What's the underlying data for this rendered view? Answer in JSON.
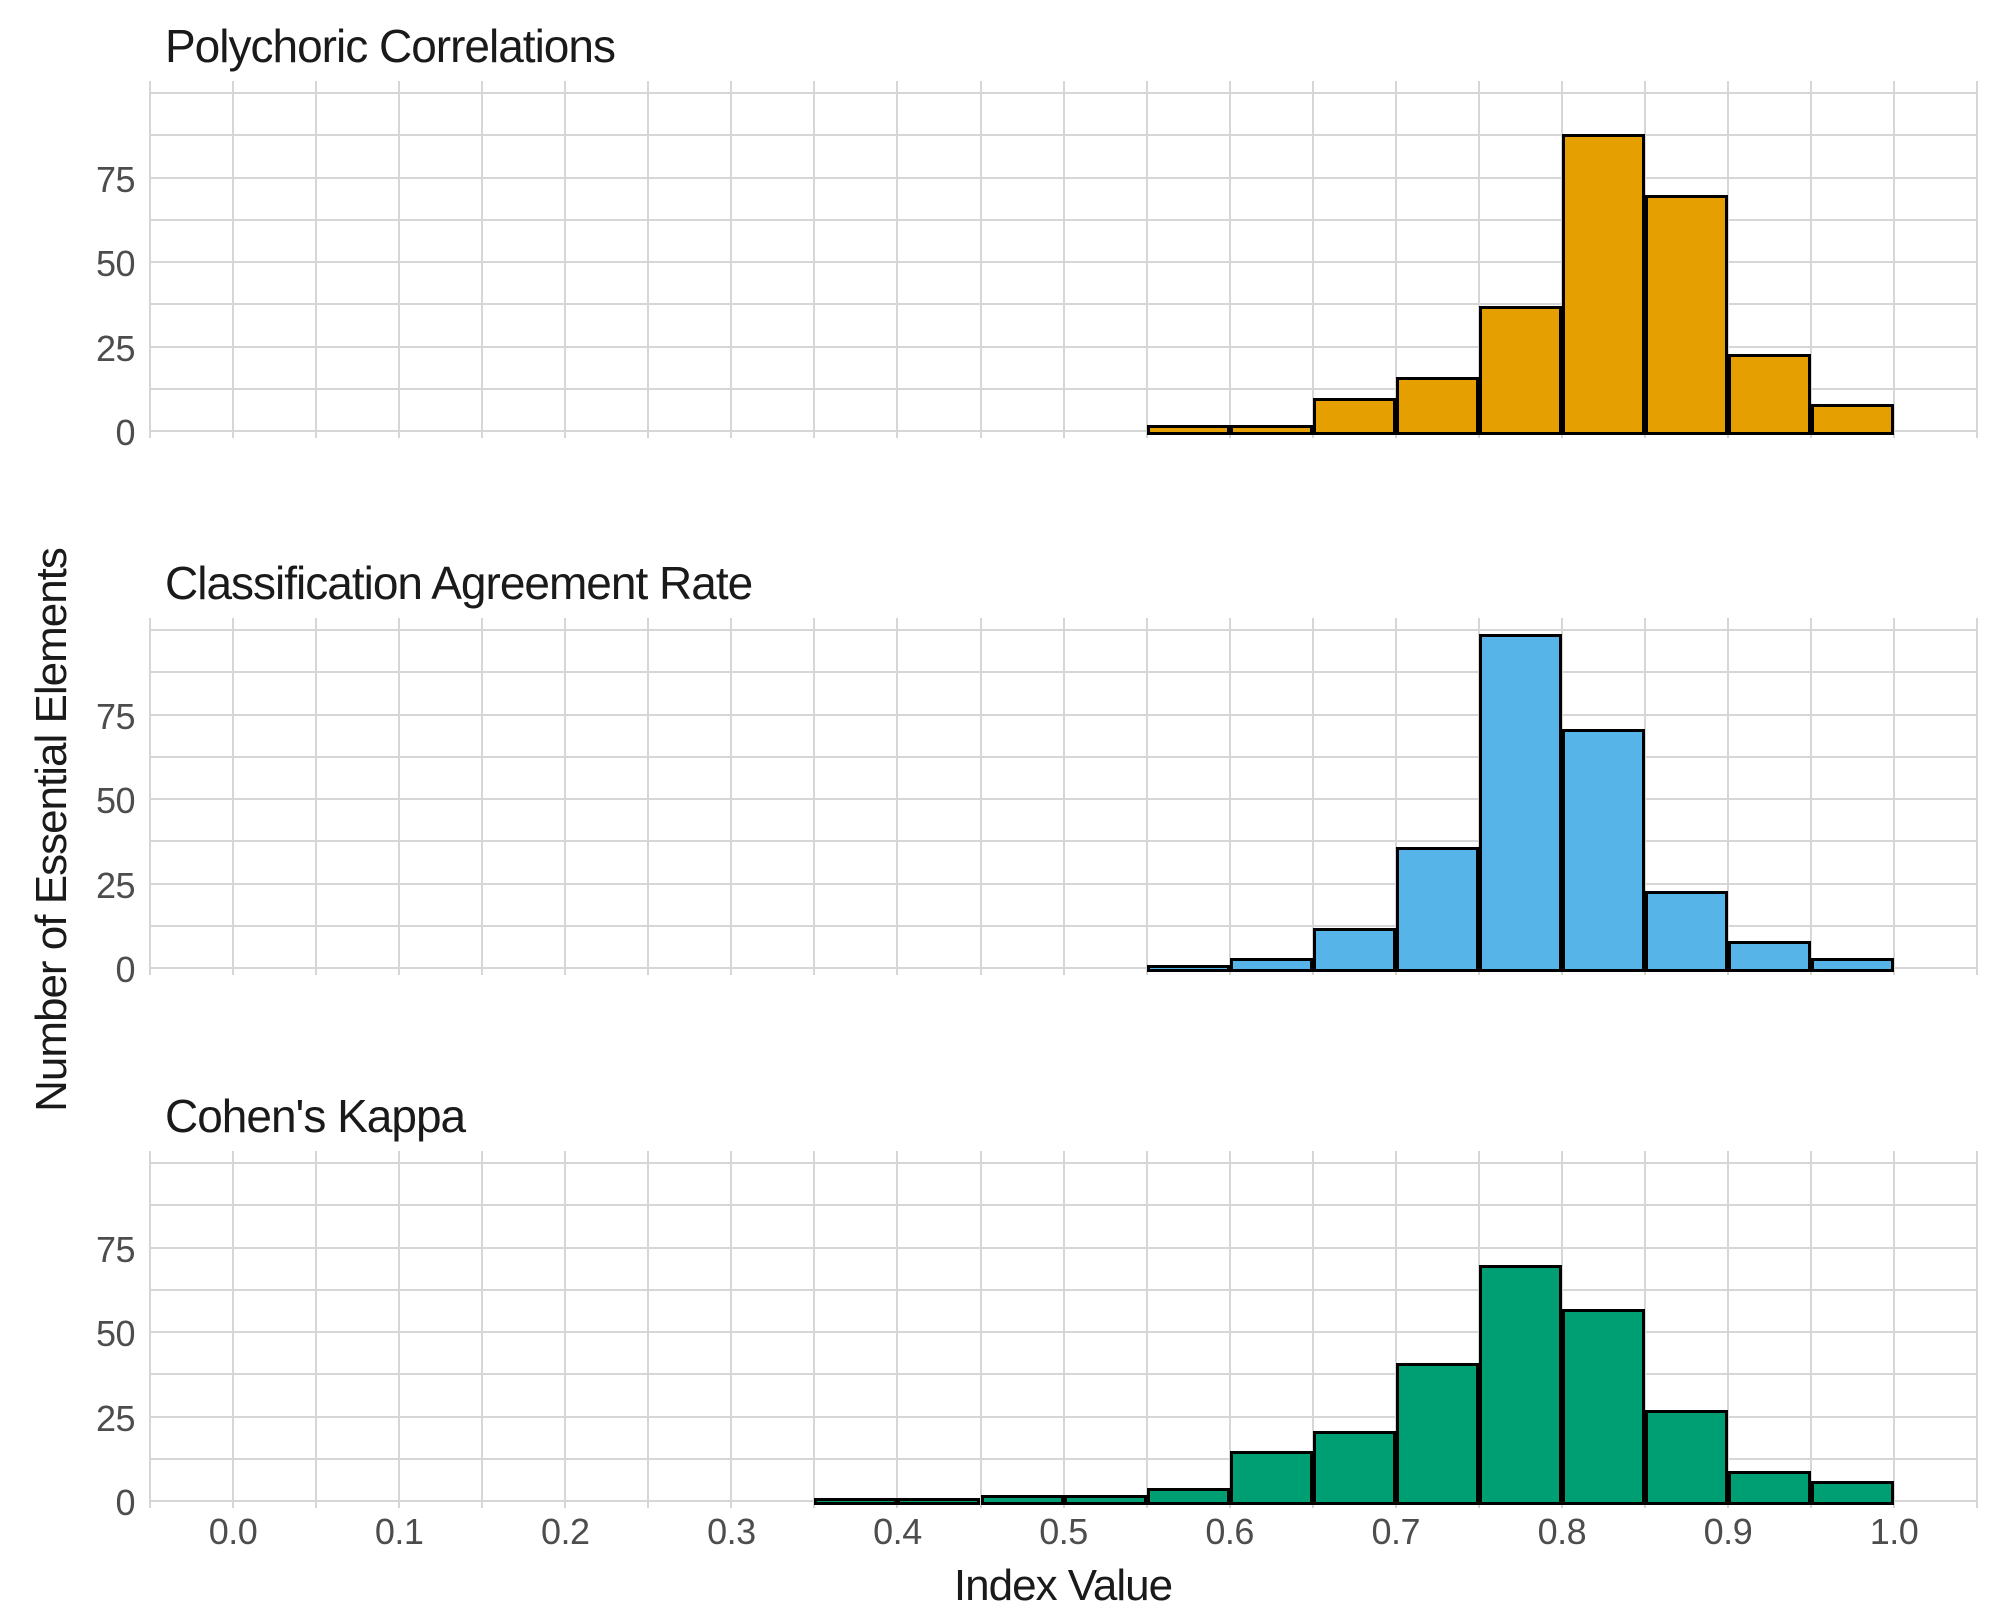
{
  "figure": {
    "x_axis_title": "Index Value",
    "y_axis_title": "Number of Essential Elements",
    "background_color": "#ffffff",
    "gridline_color": "#d6d6d6",
    "axis_title_color": "#1a1a1a",
    "tick_label_color": "#4d4d4d",
    "bar_stroke_color": "#000000",
    "x_tick_labels": [
      "0.0",
      "0.1",
      "0.2",
      "0.3",
      "0.4",
      "0.5",
      "0.6",
      "0.7",
      "0.8",
      "0.9",
      "1.0"
    ],
    "x_tick_values": [
      0.0,
      0.1,
      0.2,
      0.3,
      0.4,
      0.5,
      0.6,
      0.7,
      0.8,
      0.9,
      1.0
    ],
    "y_tick_labels": [
      "0",
      "25",
      "50",
      "75"
    ],
    "y_tick_values": [
      0,
      25,
      50,
      75
    ]
  },
  "chart_data": [
    {
      "type": "bar",
      "subtype": "histogram",
      "title": "Polychoric Correlations",
      "fill_color": "#E69F00",
      "bin_width": 0.05,
      "bin_start": 0.55,
      "bin_edges": [
        0.55,
        0.6,
        0.65,
        0.7,
        0.75,
        0.8,
        0.85,
        0.9,
        0.95,
        1.0
      ],
      "values": [
        2,
        2,
        10,
        16,
        37,
        88,
        70,
        23,
        8
      ],
      "xlabel": "Index Value",
      "ylabel": "Number of Essential Elements",
      "xlim": [
        -0.05,
        1.05
      ],
      "ylim": [
        0,
        100
      ],
      "grid": "on",
      "grid_minor_x_step": 0.05,
      "grid_minor_y_step": 12.5,
      "legend_position": "none"
    },
    {
      "type": "bar",
      "subtype": "histogram",
      "title": "Classification Agreement Rate",
      "fill_color": "#56B4E9",
      "bin_width": 0.05,
      "bin_start": 0.55,
      "bin_edges": [
        0.55,
        0.6,
        0.65,
        0.7,
        0.75,
        0.8,
        0.85,
        0.9,
        0.95,
        1.0
      ],
      "values": [
        1,
        3,
        12,
        36,
        99,
        71,
        23,
        8,
        3
      ],
      "xlabel": "Index Value",
      "ylabel": "Number of Essential Elements",
      "xlim": [
        -0.05,
        1.05
      ],
      "ylim": [
        0,
        100
      ],
      "grid": "on",
      "grid_minor_x_step": 0.05,
      "grid_minor_y_step": 12.5,
      "legend_position": "none"
    },
    {
      "type": "bar",
      "subtype": "histogram",
      "title": "Cohen's Kappa",
      "fill_color": "#009E73",
      "bin_width": 0.05,
      "bin_start": 0.35,
      "bin_edges": [
        0.35,
        0.4,
        0.45,
        0.5,
        0.55,
        0.6,
        0.65,
        0.7,
        0.75,
        0.8,
        0.85,
        0.9,
        0.95,
        1.0
      ],
      "values": [
        1,
        1,
        2,
        2,
        4,
        15,
        21,
        41,
        70,
        57,
        27,
        9,
        6
      ],
      "xlabel": "Index Value",
      "ylabel": "Number of Essential Elements",
      "xlim": [
        -0.05,
        1.05
      ],
      "ylim": [
        0,
        100
      ],
      "grid": "on",
      "grid_minor_x_step": 0.05,
      "grid_minor_y_step": 12.5,
      "legend_position": "none"
    }
  ]
}
